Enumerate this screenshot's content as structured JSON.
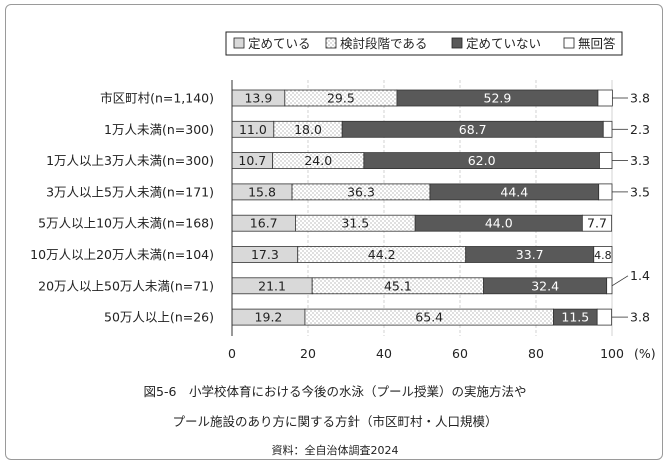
{
  "chart_data": {
    "type": "bar",
    "orientation": "horizontal",
    "stacked": true,
    "categories": [
      "市区町村(n=1,140)",
      "1万人未満(n=300)",
      "1万人以上3万人未満(n=300)",
      "3万人以上5万人未満(n=171)",
      "5万人以上10万人未満(n=168)",
      "10万人以上20万人未満(n=104)",
      "20万人以上50万人未満(n=71)",
      "50万人以上(n=26)"
    ],
    "series": [
      {
        "name": "定めている",
        "color": "#d9d9d9",
        "pattern": "solid",
        "values": [
          13.9,
          11.0,
          10.7,
          15.8,
          16.7,
          17.3,
          21.1,
          19.2
        ]
      },
      {
        "name": "検討段階である",
        "color": "#ffffff",
        "pattern": "dots",
        "values": [
          29.5,
          18.0,
          24.0,
          36.3,
          31.5,
          44.2,
          45.1,
          65.4
        ]
      },
      {
        "name": "定めていない",
        "color": "#595959",
        "pattern": "solid",
        "values": [
          52.9,
          68.7,
          62.0,
          44.4,
          44.0,
          33.7,
          32.4,
          11.5
        ]
      },
      {
        "name": "無回答",
        "color": "#ffffff",
        "pattern": "solid",
        "values": [
          3.8,
          2.3,
          3.3,
          3.5,
          7.7,
          4.8,
          1.4,
          3.8
        ]
      }
    ],
    "outside_labels": [
      "3.8",
      "2.3",
      "3.3",
      "3.5",
      "",
      "",
      "1.4",
      "3.8"
    ],
    "xlim": [
      0,
      100
    ],
    "xticks": [
      0,
      20,
      40,
      60,
      80,
      100
    ],
    "xunit": "(%)",
    "grid": true,
    "legend_position": "top"
  },
  "caption": {
    "line1": "図5-6　小学校体育における今後の水泳（プール授業）の実施方法や",
    "line2": "プール施設のあり方に関する方針（市区町村・人口規模）",
    "source": "資料：全自治体調査2024"
  }
}
